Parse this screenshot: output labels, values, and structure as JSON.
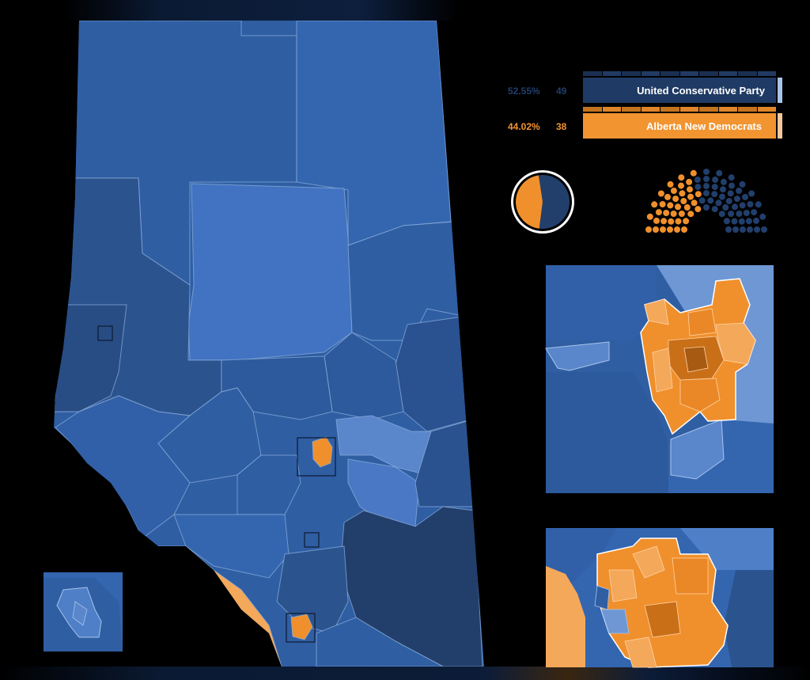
{
  "results": [
    {
      "party": "United Conservative Party",
      "percent": "52.55%",
      "seats": "49",
      "color": "#1f3a64",
      "edge_color": "#a9c4ea"
    },
    {
      "party": "Alberta New Democrats",
      "percent": "44.02%",
      "seats": "38",
      "color": "#f29430",
      "edge_color": "#f6c89a"
    }
  ],
  "vote_share_pie": {
    "ucp_fraction": 0.5255,
    "ndp_fraction": 0.4402
  },
  "seat_chart": {
    "ucp": 49,
    "ndp": 38,
    "total": 87
  },
  "colors": {
    "background": "#000000",
    "ucp_dark": "#223f6c",
    "ucp_mid": "#2f5ea3",
    "ucp_light": "#4f7fc7",
    "ucp_pale": "#6e97d4",
    "ndp": "#f0902c",
    "ndp_light": "#f4a85a",
    "ndp_dark": "#c86f18",
    "border": "#a9c4ea"
  },
  "icons": {
    "inset_marker": "square-frame-icon"
  }
}
